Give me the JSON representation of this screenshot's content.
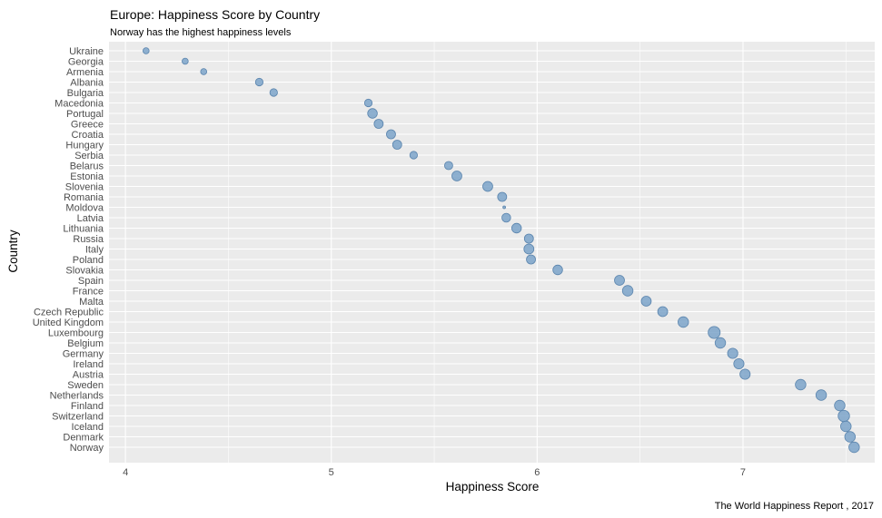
{
  "chart_data": {
    "type": "scatter",
    "title": "Europe: Happiness Score by Country",
    "subtitle": "Norway has the highest happiness levels",
    "caption": "The World Happiness Report , 2017",
    "xlabel": "Happiness Score",
    "ylabel": "Country",
    "xlim": [
      3.92,
      7.64
    ],
    "xticks": [
      4,
      5,
      6,
      7
    ],
    "grid": true,
    "legend": "none",
    "point_color": "#7ba3c9",
    "point_edge_color": "#5a84ad",
    "panel_color": "#ebebeb",
    "grid_color": "#ffffff",
    "points": [
      {
        "country": "Ukraine",
        "score": 4.1,
        "size": 2.0
      },
      {
        "country": "Georgia",
        "score": 4.29,
        "size": 2.0
      },
      {
        "country": "Armenia",
        "score": 4.38,
        "size": 2.0
      },
      {
        "country": "Albania",
        "score": 4.65,
        "size": 2.5
      },
      {
        "country": "Bulgaria",
        "score": 4.72,
        "size": 2.5
      },
      {
        "country": "Macedonia",
        "score": 5.18,
        "size": 2.5
      },
      {
        "country": "Portugal",
        "score": 5.2,
        "size": 3.2
      },
      {
        "country": "Greece",
        "score": 5.23,
        "size": 3.0
      },
      {
        "country": "Croatia",
        "score": 5.29,
        "size": 3.0
      },
      {
        "country": "Hungary",
        "score": 5.32,
        "size": 3.0
      },
      {
        "country": "Serbia",
        "score": 5.4,
        "size": 2.5
      },
      {
        "country": "Belarus",
        "score": 5.57,
        "size": 2.7
      },
      {
        "country": "Estonia",
        "score": 5.61,
        "size": 3.3
      },
      {
        "country": "Slovenia",
        "score": 5.76,
        "size": 3.3
      },
      {
        "country": "Romania",
        "score": 5.83,
        "size": 3.0
      },
      {
        "country": "Moldova",
        "score": 5.84,
        "size": 0.8
      },
      {
        "country": "Latvia",
        "score": 5.85,
        "size": 2.9
      },
      {
        "country": "Lithuania",
        "score": 5.9,
        "size": 3.2
      },
      {
        "country": "Russia",
        "score": 5.96,
        "size": 3.0
      },
      {
        "country": "Italy",
        "score": 5.96,
        "size": 3.3
      },
      {
        "country": "Poland",
        "score": 5.97,
        "size": 3.0
      },
      {
        "country": "Slovakia",
        "score": 6.1,
        "size": 3.2
      },
      {
        "country": "Spain",
        "score": 6.4,
        "size": 3.3
      },
      {
        "country": "France",
        "score": 6.44,
        "size": 3.5
      },
      {
        "country": "Malta",
        "score": 6.53,
        "size": 3.3
      },
      {
        "country": "Czech Republic",
        "score": 6.61,
        "size": 3.3
      },
      {
        "country": "United Kingdom",
        "score": 6.71,
        "size": 3.5
      },
      {
        "country": "Luxembourg",
        "score": 6.86,
        "size": 4.0
      },
      {
        "country": "Belgium",
        "score": 6.89,
        "size": 3.5
      },
      {
        "country": "Germany",
        "score": 6.95,
        "size": 3.4
      },
      {
        "country": "Ireland",
        "score": 6.98,
        "size": 3.4
      },
      {
        "country": "Austria",
        "score": 7.01,
        "size": 3.4
      },
      {
        "country": "Sweden",
        "score": 7.28,
        "size": 3.5
      },
      {
        "country": "Netherlands",
        "score": 7.38,
        "size": 3.5
      },
      {
        "country": "Finland",
        "score": 7.47,
        "size": 3.5
      },
      {
        "country": "Switzerland",
        "score": 7.49,
        "size": 3.8
      },
      {
        "country": "Iceland",
        "score": 7.5,
        "size": 3.5
      },
      {
        "country": "Denmark",
        "score": 7.52,
        "size": 3.5
      },
      {
        "country": "Norway",
        "score": 7.54,
        "size": 3.5
      }
    ]
  }
}
